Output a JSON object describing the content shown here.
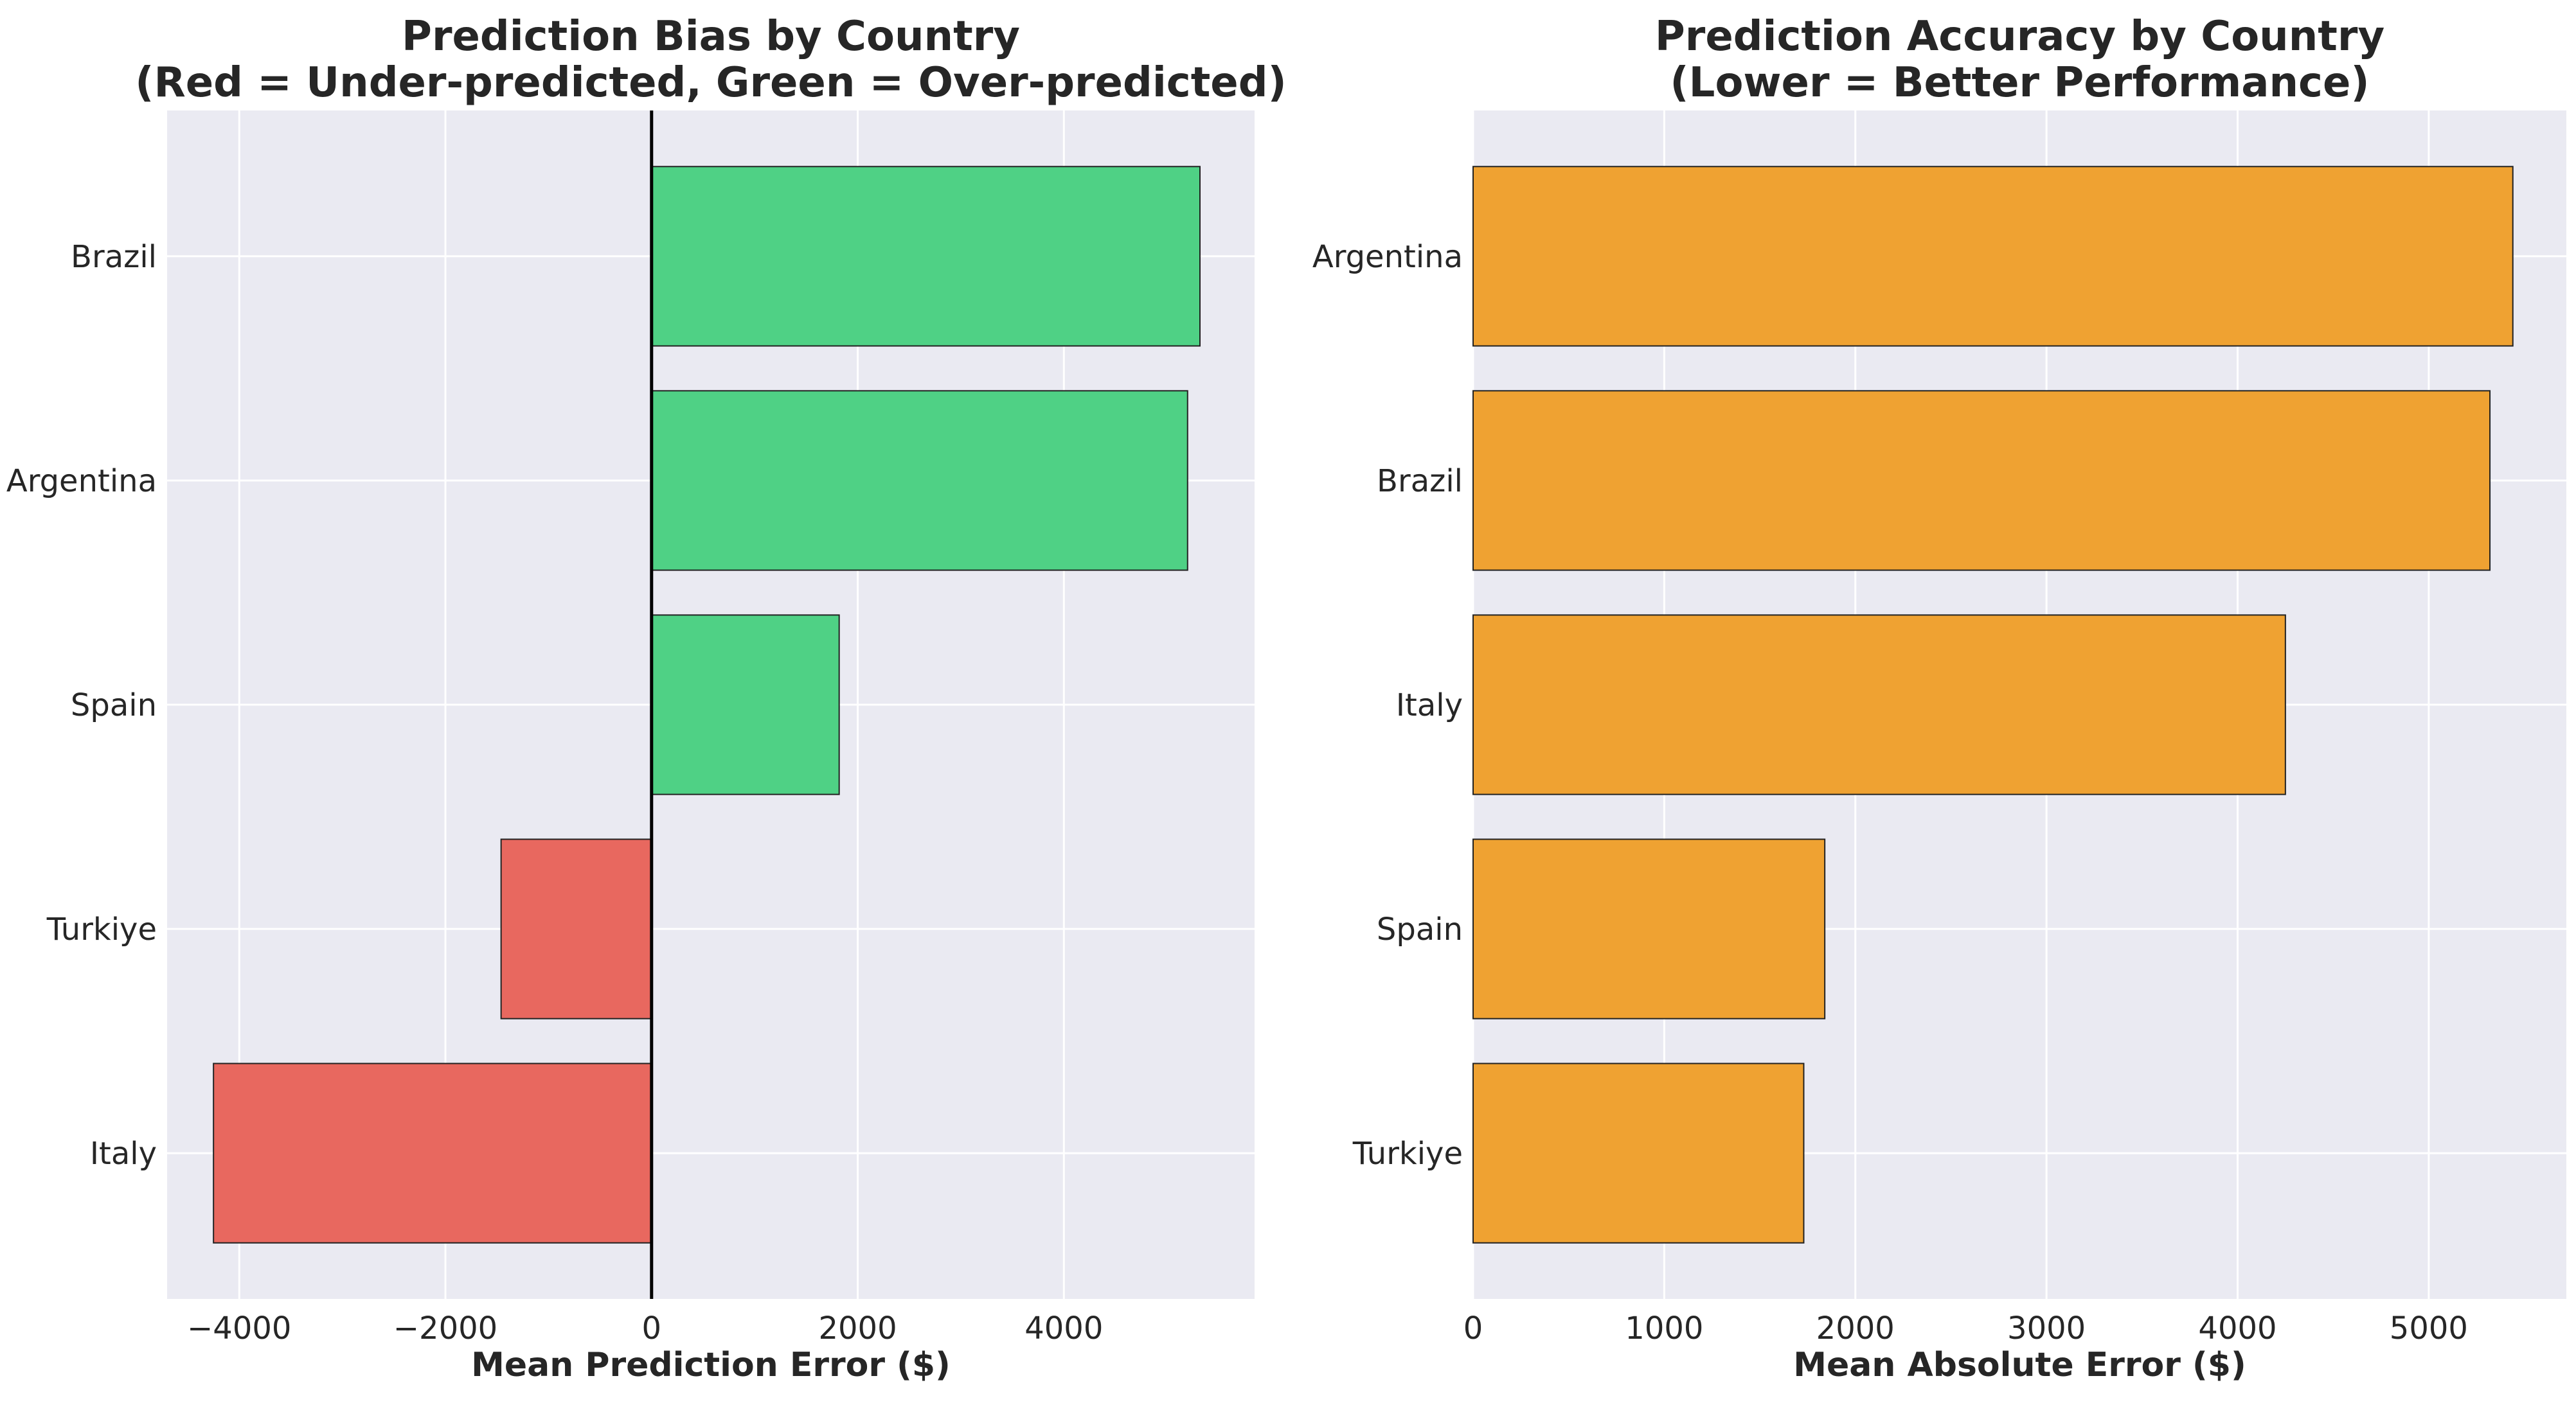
{
  "colors": {
    "plot_bg": "#eaeaf2",
    "over_predicted": "#4fd185",
    "under_predicted": "#e8685f",
    "accuracy": "#efa232"
  },
  "chart_data": [
    {
      "type": "bar",
      "orientation": "horizontal",
      "title_lines": [
        "Prediction Bias by Country",
        "(Red = Under-predicted, Green = Over-predicted)"
      ],
      "xlabel": "Mean Prediction Error ($)",
      "ylabel": "",
      "categories": [
        "Brazil",
        "Argentina",
        "Spain",
        "Turkiye",
        "Italy"
      ],
      "values": [
        5320,
        5200,
        1820,
        -1460,
        -4250
      ],
      "xlim": [
        -4700,
        5850
      ],
      "xticks": [
        -4000,
        -2000,
        0,
        2000,
        4000
      ],
      "xtick_labels": [
        "−4000",
        "−2000",
        "0",
        "2000",
        "4000"
      ],
      "zero_line": true,
      "grid": true
    },
    {
      "type": "bar",
      "orientation": "horizontal",
      "title_lines": [
        "Prediction Accuracy by Country",
        "(Lower = Better Performance)"
      ],
      "xlabel": "Mean Absolute Error ($)",
      "ylabel": "",
      "categories": [
        "Argentina",
        "Brazil",
        "Italy",
        "Spain",
        "Turkiye"
      ],
      "values": [
        5440,
        5320,
        4250,
        1840,
        1730
      ],
      "xlim": [
        0,
        5720
      ],
      "xticks": [
        0,
        1000,
        2000,
        3000,
        4000,
        5000
      ],
      "xtick_labels": [
        "0",
        "1000",
        "2000",
        "3000",
        "4000",
        "5000"
      ],
      "zero_line": false,
      "grid": true
    }
  ]
}
